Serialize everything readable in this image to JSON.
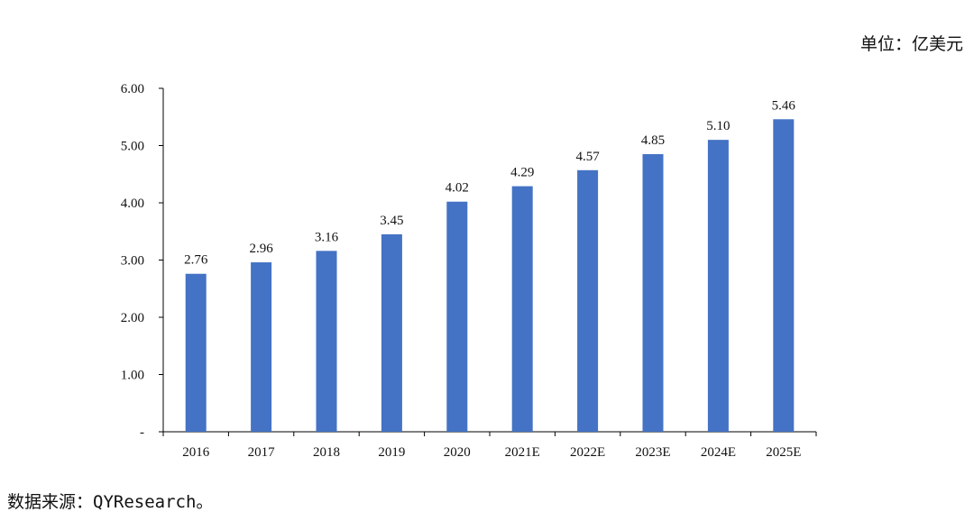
{
  "unit_label": "单位：亿美元",
  "source": "数据来源：QYResearch。",
  "colors": {
    "bar": "#4472C4",
    "axis": "#000000"
  },
  "chart_data": {
    "type": "bar",
    "categories": [
      "2016",
      "2017",
      "2018",
      "2019",
      "2020",
      "2021E",
      "2022E",
      "2023E",
      "2024E",
      "2025E"
    ],
    "values": [
      2.76,
      2.96,
      3.16,
      3.45,
      4.02,
      4.29,
      4.57,
      4.85,
      5.1,
      5.46
    ],
    "data_labels": [
      "2.76",
      "2.96",
      "3.16",
      "3.45",
      "4.02",
      "4.29",
      "4.57",
      "4.85",
      "5.10",
      "5.46"
    ],
    "ylim": [
      0,
      6
    ],
    "yticks": [
      0,
      1,
      2,
      3,
      4,
      5,
      6
    ],
    "ytick_labels": [
      "-",
      "1.00",
      "2.00",
      "3.00",
      "4.00",
      "5.00",
      "6.00"
    ],
    "grid": false,
    "legend": "none"
  }
}
